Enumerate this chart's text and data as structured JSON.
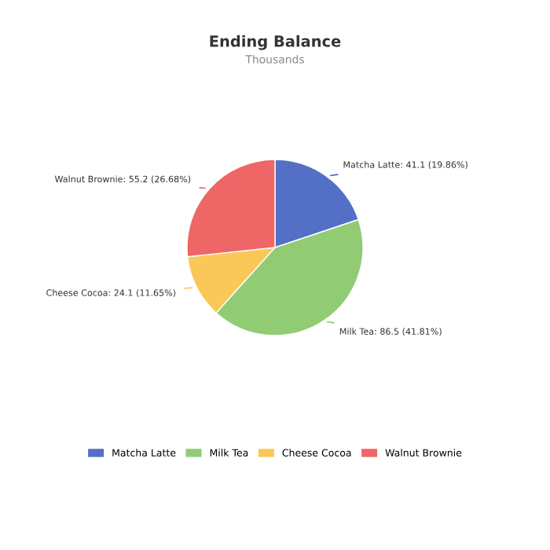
{
  "chart_data": {
    "type": "pie",
    "title": "Ending Balance",
    "subtitle": "Thousands",
    "categories": [
      "Matcha Latte",
      "Milk Tea",
      "Cheese Cocoa",
      "Walnut Brownie"
    ],
    "values": [
      41.1,
      86.5,
      24.1,
      55.2
    ],
    "colors": [
      "#5470c6",
      "#91cc75",
      "#fac858",
      "#ee6666"
    ],
    "value_labels": [
      "Matcha Latte: 41.1 (19.86%)",
      "Milk Tea: 86.5 (41.81%)",
      "Cheese Cocoa: 24.1 (11.65%)",
      "Walnut Brownie: 55.2 (26.68%)"
    ],
    "legend": "bottom"
  }
}
